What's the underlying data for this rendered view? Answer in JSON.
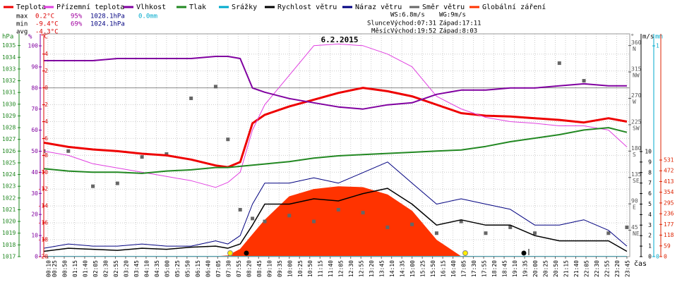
{
  "chart_data": {
    "type": "line",
    "title": "6.2.2015",
    "x_label": "čas",
    "grid": true,
    "xlim": [
      0,
      1432
    ],
    "xticks": [
      {
        "value": 10,
        "label": "00:10"
      },
      {
        "value": 25,
        "label": "00:25"
      },
      {
        "value": 50,
        "label": "00:50"
      },
      {
        "value": 75,
        "label": "01:15"
      },
      {
        "value": 100,
        "label": "01:40"
      },
      {
        "value": 125,
        "label": "02:05"
      },
      {
        "value": 150,
        "label": "02:30"
      },
      {
        "value": 175,
        "label": "02:55"
      },
      {
        "value": 200,
        "label": "03:20"
      },
      {
        "value": 225,
        "label": "03:45"
      },
      {
        "value": 250,
        "label": "04:10"
      },
      {
        "value": 275,
        "label": "04:35"
      },
      {
        "value": 300,
        "label": "05:00"
      },
      {
        "value": 325,
        "label": "05:25"
      },
      {
        "value": 350,
        "label": "05:50"
      },
      {
        "value": 375,
        "label": "06:15"
      },
      {
        "value": 400,
        "label": "06:40"
      },
      {
        "value": 425,
        "label": "07:05"
      },
      {
        "value": 450,
        "label": "07:30"
      },
      {
        "value": 475,
        "label": "07:55"
      },
      {
        "value": 500,
        "label": "08:20"
      },
      {
        "value": 525,
        "label": "08:45"
      },
      {
        "value": 550,
        "label": "09:10"
      },
      {
        "value": 575,
        "label": "09:35"
      },
      {
        "value": 600,
        "label": "10:00"
      },
      {
        "value": 625,
        "label": "10:25"
      },
      {
        "value": 650,
        "label": "10:50"
      },
      {
        "value": 675,
        "label": "11:15"
      },
      {
        "value": 700,
        "label": "11:40"
      },
      {
        "value": 725,
        "label": "12:05"
      },
      {
        "value": 750,
        "label": "12:30"
      },
      {
        "value": 775,
        "label": "12:55"
      },
      {
        "value": 800,
        "label": "13:20"
      },
      {
        "value": 825,
        "label": "13:45"
      },
      {
        "value": 850,
        "label": "14:10"
      },
      {
        "value": 875,
        "label": "14:35"
      },
      {
        "value": 900,
        "label": "15:00"
      },
      {
        "value": 925,
        "label": "15:25"
      },
      {
        "value": 950,
        "label": "15:50"
      },
      {
        "value": 975,
        "label": "16:15"
      },
      {
        "value": 1000,
        "label": "16:40"
      },
      {
        "value": 1025,
        "label": "17:05"
      },
      {
        "value": 1050,
        "label": "17:30"
      },
      {
        "value": 1075,
        "label": "17:55"
      },
      {
        "value": 1100,
        "label": "18:20"
      },
      {
        "value": 1125,
        "label": "18:45"
      },
      {
        "value": 1150,
        "label": "19:10"
      },
      {
        "value": 1175,
        "label": "19:35"
      },
      {
        "value": 1200,
        "label": "20:00"
      },
      {
        "value": 1225,
        "label": "20:25"
      },
      {
        "value": 1250,
        "label": "20:50"
      },
      {
        "value": 1275,
        "label": "21:15"
      },
      {
        "value": 1300,
        "label": "21:40"
      },
      {
        "value": 1325,
        "label": "22:05"
      },
      {
        "value": 1350,
        "label": "22:30"
      },
      {
        "value": 1375,
        "label": "22:55"
      },
      {
        "value": 1400,
        "label": "23:20"
      },
      {
        "value": 1425,
        "label": "23:45"
      }
    ],
    "axes": {
      "hpa": {
        "unit": "hPa",
        "color": "#228822",
        "lim": [
          1017,
          1036
        ],
        "ticks": [
          1017,
          1018,
          1019,
          1020,
          1021,
          1022,
          1023,
          1024,
          1025,
          1026,
          1027,
          1028,
          1029,
          1030,
          1031,
          1032,
          1033,
          1034,
          1035
        ]
      },
      "pct": {
        "unit": "%",
        "color": "#8000a0",
        "lim": [
          0,
          105.7
        ],
        "ticks": [
          0,
          10,
          20,
          30,
          40,
          50,
          60,
          70,
          80,
          90,
          100
        ]
      },
      "temp": {
        "unit": "°C",
        "color": "#dd0000",
        "lim": [
          -20,
          6.4
        ],
        "ticks": [
          4,
          2,
          0,
          -2,
          -4,
          -6,
          -8,
          -10,
          -12,
          -14,
          -16,
          -18,
          -20
        ]
      },
      "dir": {
        "unit": "°",
        "color": "#555555",
        "lim": [
          0,
          380
        ],
        "ticks": [
          360,
          315,
          270,
          225,
          180,
          135,
          90,
          45
        ],
        "compass": [
          "N",
          "NW",
          "W",
          "SW",
          "S",
          "SE",
          "E",
          "NE"
        ]
      },
      "ms": {
        "unit": "m/s",
        "color": "#000000",
        "lim": [
          0,
          21.2
        ],
        "ticks": [
          0,
          1,
          2,
          3,
          4,
          5,
          6,
          7,
          8,
          9,
          10
        ]
      },
      "mm": {
        "unit": "mm",
        "color": "#00aacc",
        "lim": [
          0,
          1.057
        ],
        "ticks": [
          0,
          1
        ]
      },
      "rad": {
        "color": "#dd2200",
        "lim": [
          0,
          1225
        ],
        "ticks": [
          0,
          59,
          118,
          177,
          236,
          295,
          354,
          413,
          472,
          531
        ]
      }
    },
    "x": [
      0,
      60,
      120,
      180,
      240,
      300,
      360,
      420,
      450,
      480,
      510,
      540,
      600,
      660,
      720,
      780,
      840,
      900,
      960,
      1020,
      1080,
      1140,
      1200,
      1260,
      1320,
      1380,
      1425
    ],
    "series": [
      {
        "name": "Teplota",
        "color": "#ee0000",
        "axis": "temp",
        "kind": "line",
        "width": 3,
        "values": [
          -6.5,
          -7,
          -7.3,
          -7.5,
          -7.8,
          -8,
          -8.5,
          -9.2,
          -9.4,
          -8.8,
          -4.2,
          -3.2,
          -2.2,
          -1.4,
          -0.6,
          0,
          -0.4,
          -1,
          -2,
          -3,
          -3.3,
          -3.4,
          -3.6,
          -3.8,
          -4.1,
          -3.6,
          -4
        ]
      },
      {
        "name": "Přízemní teplota",
        "color": "#e040e0",
        "axis": "temp",
        "kind": "line",
        "width": 1,
        "values": [
          -7.5,
          -8,
          -9,
          -9.5,
          -10,
          -10.5,
          -11,
          -11.8,
          -11.2,
          -10,
          -5,
          -2,
          1.5,
          5,
          5.2,
          5,
          4,
          2.5,
          -1,
          -2.5,
          -3.5,
          -4,
          -4.2,
          -4.5,
          -4.5,
          -5,
          -7
        ]
      },
      {
        "name": "Vlhkost",
        "color": "#8000a0",
        "axis": "pct",
        "kind": "line",
        "width": 2,
        "values": [
          93,
          93,
          93,
          94,
          94,
          94,
          94,
          95,
          95,
          94,
          80,
          78,
          75,
          73,
          71,
          70,
          72,
          73,
          77,
          79,
          79,
          80,
          80,
          81,
          82,
          81,
          81
        ]
      },
      {
        "name": "Tlak",
        "color": "#228822",
        "axis": "hpa",
        "kind": "line",
        "width": 2,
        "values": [
          1024.5,
          1024.3,
          1024.2,
          1024.2,
          1024.1,
          1024.3,
          1024.4,
          1024.6,
          1024.6,
          1024.7,
          1024.8,
          1024.9,
          1025.1,
          1025.4,
          1025.6,
          1025.7,
          1025.8,
          1025.9,
          1026,
          1026.1,
          1026.4,
          1026.8,
          1027.1,
          1027.4,
          1027.8,
          1028,
          1027.6
        ]
      },
      {
        "name": "Srážky",
        "color": "#00aacc",
        "axis": "mm",
        "kind": "line",
        "width": 2,
        "values": [
          0,
          0,
          0,
          0,
          0,
          0,
          0,
          0,
          0,
          0,
          0,
          0,
          0,
          0,
          0,
          0,
          0,
          0,
          0,
          0,
          0,
          0,
          0,
          0,
          0,
          0,
          0
        ]
      },
      {
        "name": "Rychlost větru",
        "color": "#000000",
        "axis": "ms",
        "kind": "line",
        "width": 1.5,
        "values": [
          0.5,
          0.8,
          0.7,
          0.6,
          0.8,
          0.7,
          0.9,
          1,
          0.8,
          1.2,
          3,
          5,
          5,
          5.5,
          5.3,
          6,
          6.5,
          5,
          3,
          3.5,
          3,
          3,
          2,
          1.5,
          1.5,
          1.5,
          0.5
        ]
      },
      {
        "name": "Náraz větru",
        "color": "#000080",
        "axis": "ms",
        "kind": "line",
        "width": 1,
        "values": [
          0.8,
          1.2,
          1,
          1,
          1.2,
          1,
          1,
          1.5,
          1.2,
          2,
          5,
          7,
          7,
          7.5,
          7,
          8,
          9,
          7,
          5,
          5.5,
          5,
          4.5,
          3,
          3,
          3.5,
          2.5,
          1
        ]
      },
      {
        "name": "Směr větru",
        "color": "#666666",
        "axis": "dir",
        "kind": "points",
        "width": 1,
        "values": [
          180,
          180,
          120,
          125,
          170,
          175,
          270,
          290,
          200,
          80,
          65,
          60,
          70,
          60,
          80,
          75,
          50,
          55,
          40,
          60,
          40,
          50,
          40,
          330,
          300,
          40,
          50
        ]
      },
      {
        "name": "Globální záření",
        "color": "#ff3300",
        "axis": "rad",
        "kind": "area",
        "width": 1,
        "values": [
          0,
          0,
          0,
          0,
          0,
          0,
          0,
          0,
          5,
          40,
          120,
          200,
          330,
          370,
          385,
          380,
          340,
          250,
          90,
          0,
          0,
          0,
          0,
          0,
          0,
          0,
          0
        ]
      }
    ],
    "stats": [
      {
        "label": "max",
        "values": [
          "0.2°C",
          "95%",
          "1028.1hPa",
          "0.0mm"
        ]
      },
      {
        "label": "min",
        "values": [
          "-9.4°C",
          "69%",
          "1024.1hPa"
        ]
      },
      {
        "label": "avg",
        "values": [
          "-4.3°C"
        ]
      }
    ],
    "info": {
      "ws": "WS:6.8m/s",
      "wg": "WG:9m/s",
      "sun": "Slunce",
      "sun_rise": "Východ:07:31",
      "sun_set": "Západ:17:11",
      "moon": "Měsíc",
      "moon_rise": "Východ:19:52",
      "moon_set": "Západ:8:03"
    }
  }
}
